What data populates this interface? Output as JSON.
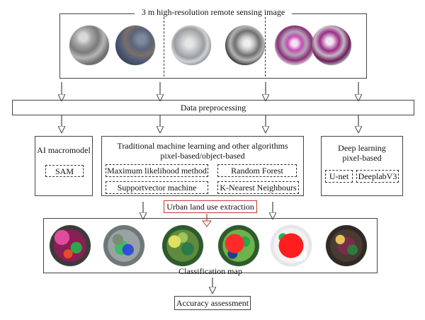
{
  "top": {
    "title": "3 m high-resolution remote sensing image"
  },
  "preprocess": {
    "label": "Data preprocessing"
  },
  "left_panel": {
    "title": "AI macromodel",
    "items": [
      "SAM"
    ]
  },
  "middle_panel": {
    "title_line1": "Traditional machine learning and other algorithms",
    "title_line2": "pixel-based/object-based",
    "items": [
      "Maximum likelihood method",
      "Random Forest",
      "Supportvector machine",
      "K-Nearest Neighbours"
    ]
  },
  "right_panel": {
    "title_line1": "Deep learning",
    "title_line2": "pixel-based",
    "items": [
      "U-net",
      "DeeplabV3"
    ]
  },
  "extraction": {
    "label": "Urban land use extraction"
  },
  "classification": {
    "label": "Classification map"
  },
  "accuracy": {
    "label": "Accuracy assessment"
  }
}
